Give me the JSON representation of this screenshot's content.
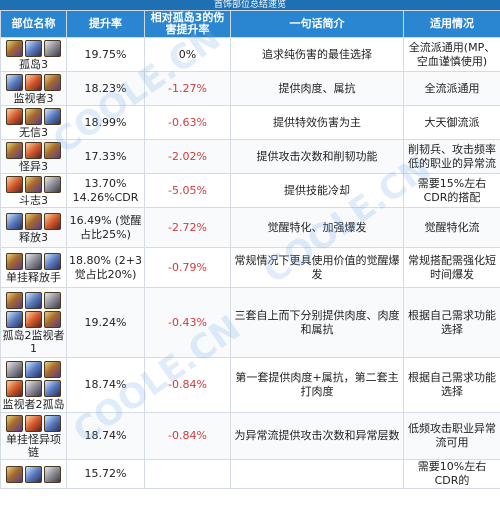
{
  "banner": "首饰部位总结速览",
  "headers": {
    "name": "部位名称",
    "boost": "提升率",
    "relative": "相对孤岛3的伤害提升率",
    "summary": "一句话简介",
    "fit": "适用情况"
  },
  "rows": [
    {
      "name": "孤岛3",
      "boost": "19.75%",
      "relative": "0%",
      "summary": "追求纯伤害的最佳选择",
      "fit": "全流派通用(MP、空血谨慎使用)",
      "icons": [
        "gold",
        "blue",
        "gray"
      ]
    },
    {
      "name": "监视者3",
      "boost": "18.23%",
      "relative": "-1.27%",
      "summary": "提供肉度、属抗",
      "fit": "全流派通用",
      "icons": [
        "blue",
        "red",
        "gold"
      ]
    },
    {
      "name": "无信3",
      "boost": "18.99%",
      "relative": "-0.63%",
      "summary": "提供特效伤害为主",
      "fit": "大天御流派",
      "icons": [
        "red",
        "gold",
        "blue"
      ]
    },
    {
      "name": "怪异3",
      "boost": "17.33%",
      "relative": "-2.02%",
      "summary": "提供攻击次数和削韧功能",
      "fit": "削韧兵、攻击频率低的职业的异常流",
      "icons": [
        "gold",
        "red",
        "gold"
      ]
    },
    {
      "name": "斗志3",
      "boost": "13.70% 14.26%CDR",
      "relative": "-5.05%",
      "summary": "提供技能冷却",
      "fit": "需要15%左右CDR的搭配",
      "icons": [
        "red",
        "gold",
        "gray"
      ]
    },
    {
      "name": "释放3",
      "boost": "16.49% (觉醒占比25%)",
      "relative": "-2.72%",
      "summary": "觉醒特化、加强爆发",
      "fit": "觉醒特化流",
      "icons": [
        "blue",
        "gold",
        "red"
      ]
    },
    {
      "name": "单挂释放手",
      "boost": "18.80% (2+3觉占比20%)",
      "relative": "-0.79%",
      "summary": "常规情况下更具使用价值的觉醒爆发",
      "fit": "常规搭配需强化短时间爆发",
      "icons": [
        "gold",
        "gray",
        "blue"
      ]
    },
    {
      "name": "孤岛2监视者1",
      "boost": "19.24%",
      "relative": "-0.43%",
      "summary": "三套自上而下分别提供肉度、肉度和属抗",
      "fit": "根据自己需求功能选择",
      "icons": [
        "gold",
        "blue",
        "gray",
        "blue",
        "red",
        "gold"
      ]
    },
    {
      "name": "监视者2孤岛",
      "boost": "18.74%",
      "relative": "-0.84%",
      "summary": "第一套提供肉度+属抗，第二套主打肉度",
      "fit": "根据自己需求功能选择",
      "icons": [
        "gray",
        "blue",
        "gold",
        "red",
        "gray",
        "blue"
      ]
    },
    {
      "name": "单挂怪异项链",
      "boost": "18.74%",
      "relative": "-0.84%",
      "summary": "为异常流提供攻击次数和异常层数",
      "fit": "低频攻击职业异常流可用",
      "icons": [
        "gold",
        "red",
        "blue"
      ]
    },
    {
      "name": "",
      "boost": "15.72%",
      "relative": "",
      "summary": "",
      "fit": "需要10%左右CDR的",
      "icons": [
        "gold",
        "blue",
        "gray"
      ]
    }
  ]
}
